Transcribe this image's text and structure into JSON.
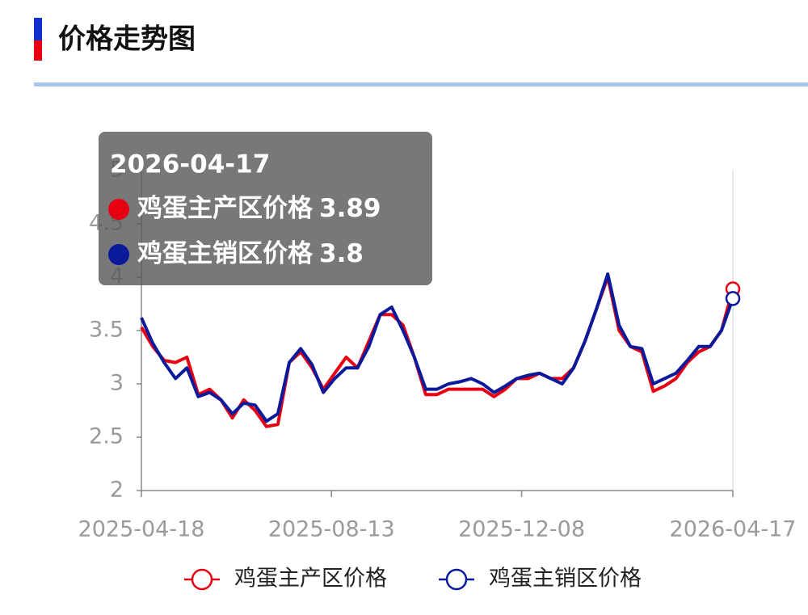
{
  "header": {
    "title": "价格走势图"
  },
  "chart_data": {
    "type": "line",
    "x": [
      "2025-04-18",
      "2025-04-25",
      "2025-05-02",
      "2025-05-09",
      "2025-05-16",
      "2025-05-23",
      "2025-05-30",
      "2025-06-06",
      "2025-06-13",
      "2025-06-20",
      "2025-06-27",
      "2025-07-04",
      "2025-07-11",
      "2025-07-18",
      "2025-07-25",
      "2025-08-01",
      "2025-08-08",
      "2025-08-15",
      "2025-08-22",
      "2025-08-29",
      "2025-09-05",
      "2025-09-12",
      "2025-09-19",
      "2025-09-26",
      "2025-10-03",
      "2025-10-10",
      "2025-10-17",
      "2025-10-24",
      "2025-10-31",
      "2025-11-07",
      "2025-11-14",
      "2025-11-21",
      "2025-11-28",
      "2025-12-05",
      "2025-12-12",
      "2025-12-19",
      "2025-12-26",
      "2026-01-02",
      "2026-01-09",
      "2026-01-16",
      "2026-01-23",
      "2026-01-30",
      "2026-02-06",
      "2026-02-13",
      "2026-02-20",
      "2026-02-27",
      "2026-03-06",
      "2026-03-13",
      "2026-03-20",
      "2026-03-27",
      "2026-04-03",
      "2026-04-10",
      "2026-04-17"
    ],
    "series": [
      {
        "name": "鸡蛋主产区价格",
        "color": "#e60012",
        "values": [
          3.53,
          3.35,
          3.22,
          3.2,
          3.25,
          2.9,
          2.95,
          2.85,
          2.68,
          2.85,
          2.75,
          2.6,
          2.62,
          3.2,
          3.3,
          3.15,
          2.95,
          3.1,
          3.25,
          3.15,
          3.4,
          3.65,
          3.65,
          3.55,
          3.25,
          2.9,
          2.9,
          2.95,
          2.95,
          2.95,
          2.95,
          2.88,
          2.95,
          3.05,
          3.05,
          3.1,
          3.05,
          3.05,
          3.15,
          3.4,
          3.7,
          4.0,
          3.5,
          3.35,
          3.3,
          2.93,
          2.98,
          3.05,
          3.2,
          3.3,
          3.35,
          3.5,
          3.89
        ]
      },
      {
        "name": "鸡蛋主销区价格",
        "color": "#0a1a9a",
        "values": [
          3.62,
          3.38,
          3.2,
          3.05,
          3.15,
          2.88,
          2.92,
          2.85,
          2.72,
          2.82,
          2.8,
          2.65,
          2.72,
          3.2,
          3.33,
          3.18,
          2.92,
          3.05,
          3.15,
          3.15,
          3.35,
          3.65,
          3.72,
          3.5,
          3.25,
          2.95,
          2.95,
          3.0,
          3.02,
          3.05,
          3.0,
          2.92,
          2.98,
          3.05,
          3.08,
          3.1,
          3.05,
          3.0,
          3.15,
          3.4,
          3.7,
          4.03,
          3.55,
          3.35,
          3.33,
          3.0,
          3.05,
          3.1,
          3.22,
          3.35,
          3.35,
          3.5,
          3.8
        ]
      }
    ],
    "xlim": [
      "2025-04-18",
      "2026-04-17"
    ],
    "xticks": [
      "2025-04-18",
      "2025-08-13",
      "2025-12-08",
      "2026-04-17"
    ],
    "ylim": [
      2,
      5
    ],
    "yticks": [
      2,
      2.5,
      3,
      3.5,
      4,
      4.5,
      5
    ]
  }
}
